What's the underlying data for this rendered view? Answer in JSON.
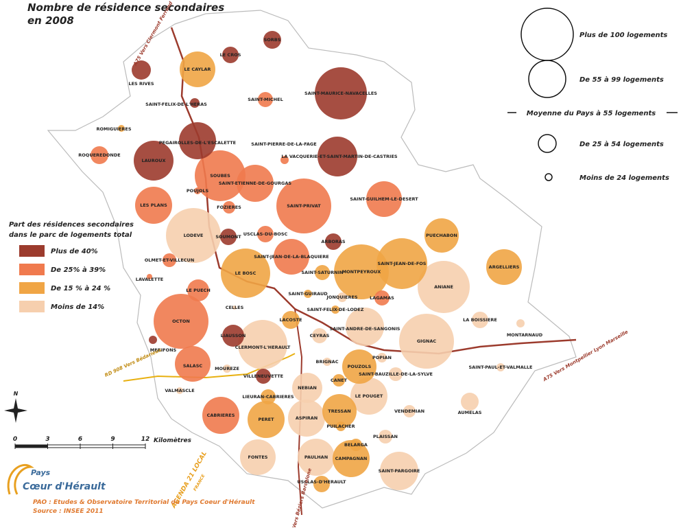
{
  "title": [
    "Nombre de résidence secondaires",
    "en 2008"
  ],
  "size_legend": [
    "Plus de 100 logements",
    "De 55  à  99 logements",
    "Moyenne du Pays à 55 logements",
    "De 25 à 54 logements",
    "Moins de 24 logements"
  ],
  "color_legend": {
    "title": [
      "Part des résidences secondaires",
      "dans le parc de logements total"
    ],
    "classes": [
      {
        "label": "Plus de 40%",
        "color": "#9c3b2d"
      },
      {
        "label": "De 25% à 39%",
        "color": "#f07a4e"
      },
      {
        "label": "De 15 % à 24 %",
        "color": "#f0a545"
      },
      {
        "label": "Moins de 14%",
        "color": "#f6cfae"
      }
    ]
  },
  "communes": [
    {
      "name": "SORBS",
      "class": 0
    },
    {
      "name": "LE CROS",
      "class": 0
    },
    {
      "name": "LE CAYLAR",
      "class": 2
    },
    {
      "name": "LES RIVES",
      "class": 0
    },
    {
      "name": "SAINT-MAURICE-NAVACELLES",
      "class": 0
    },
    {
      "name": "SAINT-MICHEL",
      "class": 1
    },
    {
      "name": "SAINT-FELIX-DE-L'HERAS",
      "class": 0
    },
    {
      "name": "ROMIGUIERES",
      "class": 2
    },
    {
      "name": "PEGAIROLLES-DE-L'ESCALETTE",
      "class": 0
    },
    {
      "name": "SAINT-PIERRE-DE-LA-FAGE",
      "class": 1
    },
    {
      "name": "LA VACQUERIE-ET-SAINT-MARTIN-DE-CASTRIES",
      "class": 0
    },
    {
      "name": "ROQUEREDONDE",
      "class": 1
    },
    {
      "name": "LAUROUX",
      "class": 0
    },
    {
      "name": "SOUBES",
      "class": 1
    },
    {
      "name": "SAINT-ETIENNE-DE-GOURGAS",
      "class": 1
    },
    {
      "name": "POUJOLS",
      "class": 1
    },
    {
      "name": "LES PLANS",
      "class": 1
    },
    {
      "name": "SAINT-PRIVAT",
      "class": 1
    },
    {
      "name": "SAINT-GUILHEM-LE-DESERT",
      "class": 1
    },
    {
      "name": "FOZIERES",
      "class": 1
    },
    {
      "name": "LODEVE",
      "class": 3
    },
    {
      "name": "SOUMONT",
      "class": 0
    },
    {
      "name": "USCLAS-DU-BOSC",
      "class": 1
    },
    {
      "name": "PUECHABON",
      "class": 2
    },
    {
      "name": "ARBORAS",
      "class": 0
    },
    {
      "name": "SAINT-JEAN-DE-LA-BLAQUIERE",
      "class": 1
    },
    {
      "name": "OLMET-ET-VILLECUN",
      "class": 1
    },
    {
      "name": "SAINT-JEAN-DE-FOS",
      "class": 2
    },
    {
      "name": "MONTPEYROUX",
      "class": 2
    },
    {
      "name": "ARGELLIERS",
      "class": 2
    },
    {
      "name": "LE BOSC",
      "class": 2
    },
    {
      "name": "SAINT-SATURNIN",
      "class": 2
    },
    {
      "name": "LAVALETTE",
      "class": 1
    },
    {
      "name": "ANIANE",
      "class": 3
    },
    {
      "name": "LE PUECH",
      "class": 1
    },
    {
      "name": "SAINT-GUIRAUD",
      "class": 2
    },
    {
      "name": "JONQUIERES",
      "class": 3
    },
    {
      "name": "LAGAMAS",
      "class": 1
    },
    {
      "name": "CELLES",
      "class": 3
    },
    {
      "name": "SAINT-FELIX-DE-LODEZ",
      "class": 2
    },
    {
      "name": "OCTON",
      "class": 1
    },
    {
      "name": "LACOSTE",
      "class": 2
    },
    {
      "name": "LA BOISSIERE",
      "class": 3
    },
    {
      "name": "SAINT-ANDRE-DE-SANGONIS",
      "class": 3
    },
    {
      "name": "MONTARNAUD",
      "class": 3
    },
    {
      "name": "LIAUSSON",
      "class": 0
    },
    {
      "name": "CEYRAS",
      "class": 3
    },
    {
      "name": "GIGNAC",
      "class": 3
    },
    {
      "name": "CLERMONT-L'HERAULT",
      "class": 3
    },
    {
      "name": "MERIFONS",
      "class": 0
    },
    {
      "name": "BRIGNAC",
      "class": 3
    },
    {
      "name": "POPIAN",
      "class": 3
    },
    {
      "name": "SALASC",
      "class": 1
    },
    {
      "name": "MOUREZE",
      "class": 3
    },
    {
      "name": "POUZOLS",
      "class": 2
    },
    {
      "name": "SAINT-PAUL-ET-VALMALLE",
      "class": 3
    },
    {
      "name": "SAINT-BAUZILLE-DE-LA-SYLVE",
      "class": 3
    },
    {
      "name": "VILLENEUVETTE",
      "class": 0
    },
    {
      "name": "CANET",
      "class": 2
    },
    {
      "name": "NEBIAN",
      "class": 3
    },
    {
      "name": "LE POUGET",
      "class": 3
    },
    {
      "name": "VALMASCLE",
      "class": 3
    },
    {
      "name": "LIEURAN-CABRIERES",
      "class": 2
    },
    {
      "name": "VENDEMIAN",
      "class": 3
    },
    {
      "name": "AUMELAS",
      "class": 3
    },
    {
      "name": "TRESSAN",
      "class": 2
    },
    {
      "name": "CABRIERES",
      "class": 1
    },
    {
      "name": "PERET",
      "class": 2
    },
    {
      "name": "ASPIRAN",
      "class": 3
    },
    {
      "name": "PUILACHER",
      "class": 2
    },
    {
      "name": "PLAISSAN",
      "class": 3
    },
    {
      "name": "BELARGA",
      "class": 2
    },
    {
      "name": "FONTES",
      "class": 3
    },
    {
      "name": "PAULHAN",
      "class": 3
    },
    {
      "name": "CAMPAGNAN",
      "class": 2
    },
    {
      "name": "SAINT-PARGOIRE",
      "class": 3
    },
    {
      "name": "USCLAS-D'HERAULT",
      "class": 2
    }
  ],
  "roads": [
    "A75 Vers Clermont Ferrand",
    "A75 Vers Montpellier Lyon Marseille",
    "A75 Vers Béziers Barcelone",
    "RD 908 Vers Bédarieux"
  ],
  "north": "N",
  "scale": {
    "ticks": [
      0,
      3,
      6,
      9,
      12
    ],
    "unit": "Kilomètres"
  },
  "logo": {
    "pays": "Pays",
    "name": "Cœur d'Hérault",
    "agenda": "AGENDA 21 LOCAL",
    "country": "FRANCE"
  },
  "credits": [
    "PAO : Etudes & Observatoire Territorial du Pays Coeur d'Hérault",
    "Source : INSEE 2011"
  ]
}
